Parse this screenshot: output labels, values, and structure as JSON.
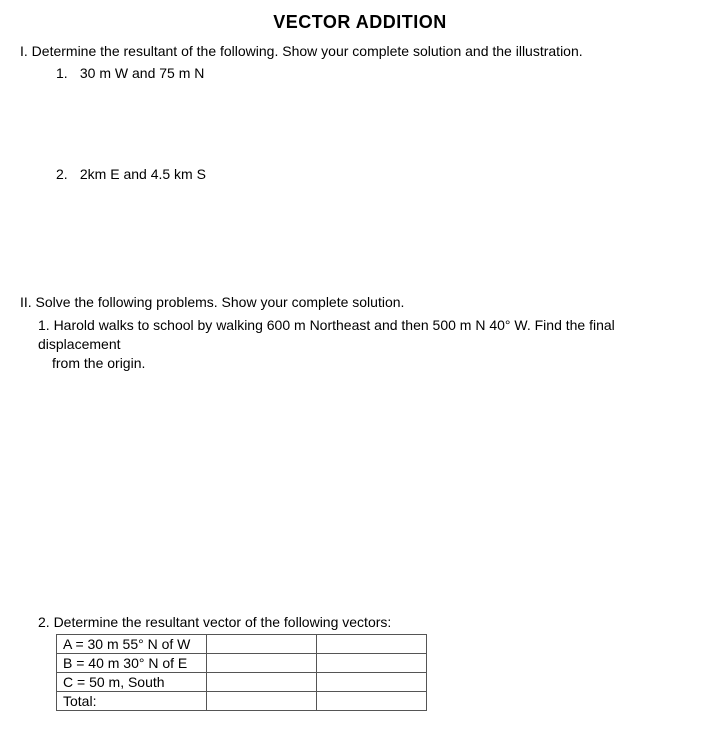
{
  "title": "VECTOR ADDITION",
  "section1": {
    "instruction": "I. Determine the resultant of the following. Show your complete solution and the illustration.",
    "items": [
      {
        "num": "1.",
        "text": "30 m W and 75 m N"
      },
      {
        "num": "2.",
        "text": "2km E and 4.5 km S"
      }
    ]
  },
  "section2": {
    "instruction": "II. Solve the following problems. Show your complete solution.",
    "p1": {
      "line1": "1. Harold walks to school by walking 600 m Northeast and then 500 m N 40° W. Find the final displacement",
      "line2": "from the origin."
    },
    "p2": {
      "intro": "2. Determine the resultant vector of the following vectors:",
      "rows": [
        "A = 30 m 55° N of W",
        "B = 40 m 30° N of E",
        "C = 50 m, South",
        "Total:"
      ]
    }
  }
}
